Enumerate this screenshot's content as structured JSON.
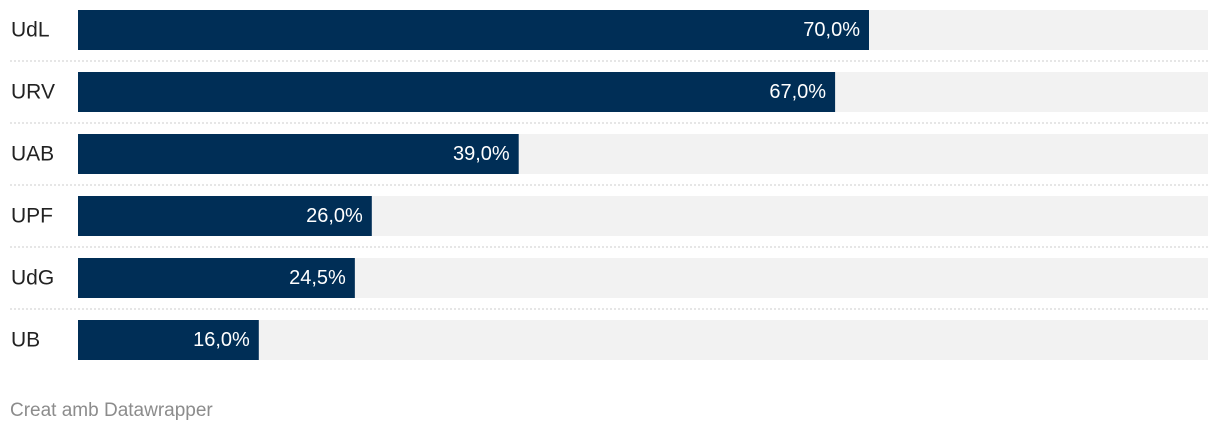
{
  "chart_data": {
    "type": "bar",
    "orientation": "horizontal",
    "categories": [
      "UdL",
      "URV",
      "UAB",
      "UPF",
      "UdG",
      "UB"
    ],
    "values": [
      70.0,
      67.0,
      39.0,
      26.0,
      24.5,
      16.0
    ],
    "value_labels": [
      "70,0%",
      "67,0%",
      "39,0%",
      "26,0%",
      "24,5%",
      "16,0%"
    ],
    "xlim": [
      0,
      100
    ],
    "unit": "%",
    "grid": false,
    "colors": {
      "bar": "#002e56",
      "track": "#f2f2f2",
      "separator": "#cccccc"
    }
  },
  "footer": {
    "credit": "Creat amb Datawrapper"
  }
}
